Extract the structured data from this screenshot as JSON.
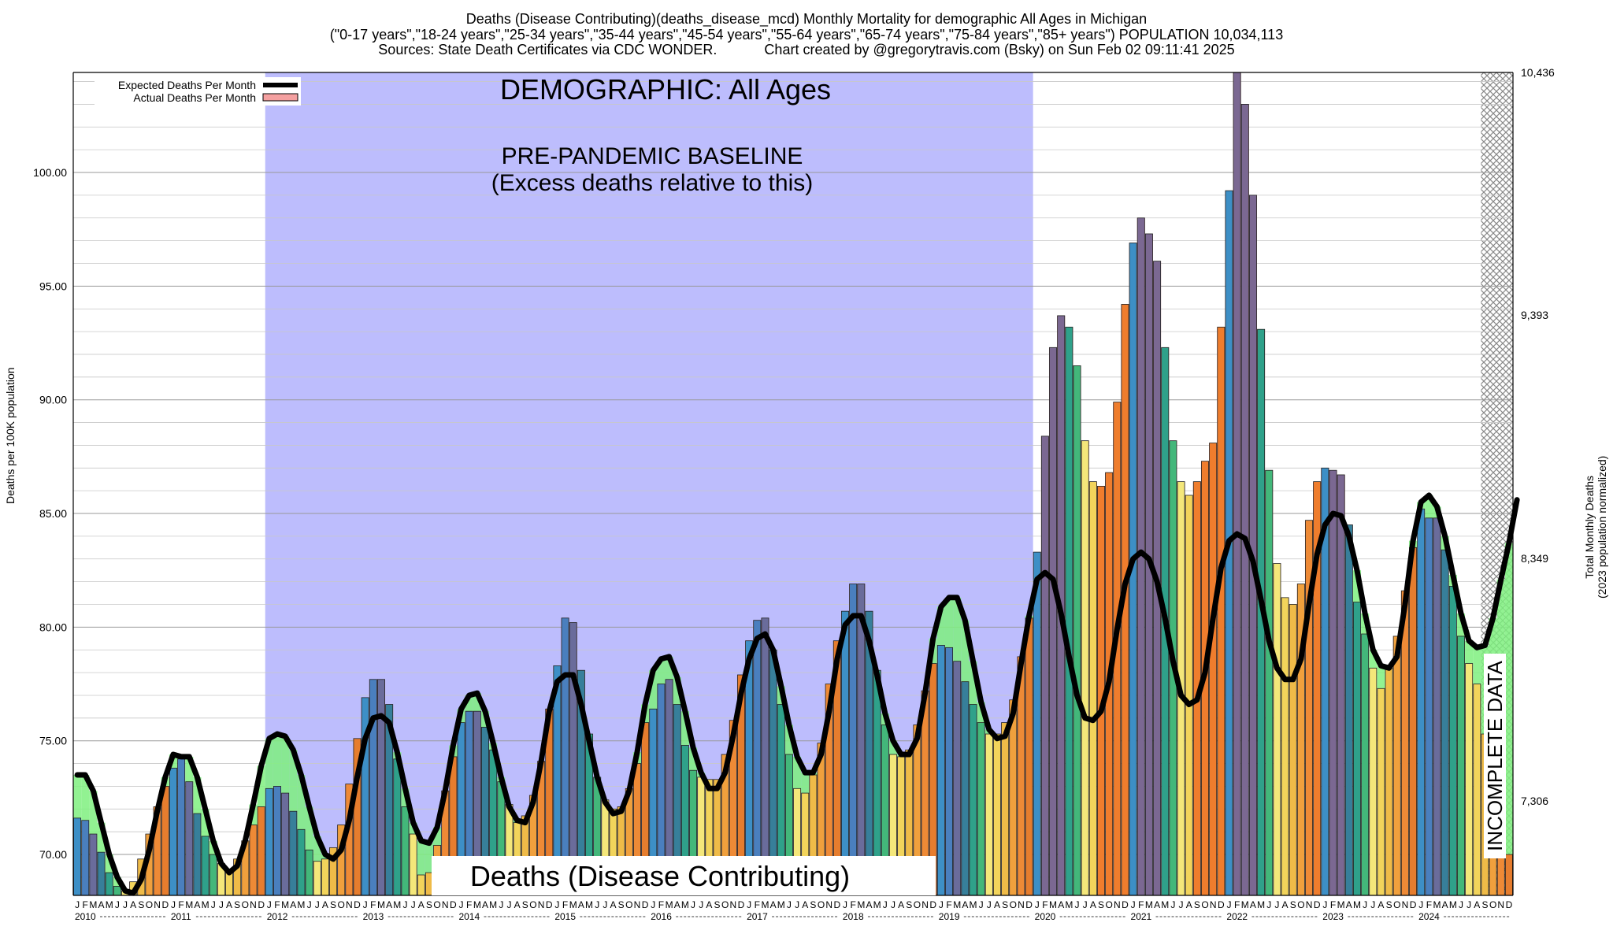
{
  "header": {
    "line1": "Deaths (Disease Contributing)(deaths_disease_mcd) Monthly Mortality for demographic All Ages in Michigan",
    "line2": "(\"0-17 years\",\"18-24 years\",\"25-34 years\",\"35-44 years\",\"45-54 years\",\"55-64 years\",\"65-74 years\",\"75-84 years\",\"85+ years\") POPULATION 10,034,113",
    "line3": "Sources: State Death Certificates via CDC WONDER.            Chart created by @gregorytravis.com (Bsky) on Sun Feb 02 09:11:41 2025"
  },
  "axes": {
    "y_left_label": "Deaths per 100K population",
    "y_right_label_1": "Total Monthly Deaths",
    "y_right_label_2": "(2023 population normalized)",
    "y_left_ticks": [
      "70.00",
      "75.00",
      "80.00",
      "85.00",
      "90.00",
      "95.00",
      "100.00"
    ],
    "y_right_ticks": [
      "7,306",
      "8,349",
      "9,393",
      "10,436"
    ]
  },
  "legend": {
    "expected": "Expected Deaths Per Month",
    "actual": "Actual Deaths Per Month"
  },
  "annotations": {
    "demographic": "DEMOGRAPHIC: All Ages",
    "baseline_1": "PRE-PANDEMIC BASELINE",
    "baseline_2": "(Excess deaths relative to this)",
    "bottom_title": "Deaths (Disease Contributing)",
    "incomplete": "INCOMPLETE DATA"
  },
  "colors": {
    "baseline_band": "#bdbdfd",
    "expected_line": "#000000",
    "actual_fill": "#f4a0a0",
    "excess_fill": "#7ff07f",
    "hatch": "#888888"
  },
  "chart_data": {
    "type": "bar",
    "title": "Deaths (Disease Contributing)(deaths_disease_mcd) Monthly Mortality for demographic All Ages in Michigan",
    "ylabel": "Deaths per 100K population",
    "ylim": [
      68.2,
      104.4
    ],
    "y2lim": [
      6900,
      10436
    ],
    "baseline_years": [
      2012,
      2019
    ],
    "incomplete_from": "2024-09",
    "month_letters": [
      "J",
      "F",
      "M",
      "A",
      "M",
      "J",
      "J",
      "A",
      "S",
      "O",
      "N",
      "D"
    ],
    "years": [
      2010,
      2011,
      2012,
      2013,
      2014,
      2015,
      2016,
      2017,
      2018,
      2019,
      2020,
      2021,
      2022,
      2023,
      2024
    ],
    "actual": [
      71.6,
      71.5,
      70.9,
      70.1,
      69.2,
      68.6,
      68.4,
      68.8,
      69.8,
      70.9,
      72.1,
      73.0,
      73.8,
      74.2,
      73.2,
      71.8,
      70.8,
      70.0,
      69.6,
      69.2,
      69.8,
      70.6,
      71.3,
      72.1,
      72.9,
      73.0,
      72.7,
      71.9,
      71.1,
      70.2,
      69.7,
      69.8,
      70.3,
      71.3,
      73.1,
      75.1,
      76.9,
      77.7,
      77.7,
      76.6,
      74.2,
      72.1,
      70.9,
      69.1,
      69.2,
      70.4,
      72.8,
      74.3,
      75.8,
      76.3,
      76.3,
      75.6,
      74.6,
      73.2,
      72.2,
      71.4,
      71.7,
      72.6,
      74.1,
      76.4,
      78.3,
      80.4,
      80.2,
      78.1,
      75.3,
      73.4,
      72.4,
      72.0,
      72.1,
      72.9,
      74.0,
      75.8,
      76.4,
      77.5,
      77.7,
      76.6,
      74.8,
      73.7,
      73.4,
      73.3,
      73.3,
      74.4,
      75.9,
      77.9,
      79.4,
      80.3,
      80.4,
      79.0,
      76.6,
      74.4,
      72.9,
      72.7,
      73.5,
      74.9,
      77.5,
      79.4,
      80.7,
      81.9,
      81.9,
      80.7,
      78.1,
      75.7,
      74.4,
      74.3,
      74.6,
      75.7,
      77.2,
      78.4,
      79.2,
      79.1,
      78.5,
      77.6,
      76.6,
      75.8,
      75.3,
      75.3,
      75.8,
      76.8,
      78.7,
      80.4,
      83.3,
      88.4,
      92.3,
      93.7,
      93.2,
      91.5,
      88.2,
      86.4,
      86.2,
      86.8,
      89.9,
      94.2,
      96.9,
      98.0,
      97.3,
      96.1,
      92.3,
      88.2,
      86.4,
      85.8,
      86.4,
      87.3,
      88.1,
      93.2,
      99.2,
      104.4,
      103.0,
      99.0,
      93.1,
      86.9,
      82.8,
      81.3,
      81.0,
      81.9,
      84.7,
      86.4,
      87.0,
      86.9,
      86.7,
      84.5,
      81.1,
      79.7,
      78.2,
      77.3,
      78.2,
      79.6,
      81.6,
      83.5,
      85.2,
      84.8,
      84.8,
      83.4,
      81.8,
      79.6,
      78.4,
      77.5,
      75.3,
      72.2,
      70.8,
      70.0
    ],
    "expected": [
      73.5,
      73.5,
      72.8,
      71.4,
      70.0,
      69.0,
      68.4,
      68.3,
      68.9,
      70.2,
      71.9,
      73.4,
      74.4,
      74.3,
      74.3,
      73.4,
      72.0,
      70.6,
      69.6,
      69.2,
      69.5,
      70.6,
      72.2,
      73.9,
      75.1,
      75.3,
      75.2,
      74.6,
      73.5,
      72.1,
      70.8,
      70.0,
      69.8,
      70.2,
      71.5,
      73.4,
      75.1,
      76.0,
      76.1,
      75.8,
      74.5,
      72.9,
      71.4,
      70.6,
      70.5,
      71.2,
      72.8,
      74.8,
      76.4,
      77.0,
      77.1,
      76.3,
      74.9,
      73.4,
      72.1,
      71.5,
      71.4,
      72.3,
      74.1,
      76.3,
      77.6,
      77.9,
      77.9,
      76.6,
      75.0,
      73.4,
      72.3,
      71.8,
      71.9,
      72.8,
      74.5,
      76.6,
      78.1,
      78.6,
      78.7,
      77.8,
      76.3,
      74.7,
      73.6,
      72.9,
      72.9,
      73.6,
      75.2,
      77.1,
      78.6,
      79.5,
      79.7,
      79.0,
      77.4,
      75.7,
      74.3,
      73.6,
      73.6,
      74.4,
      76.3,
      78.6,
      80.1,
      80.5,
      80.5,
      79.4,
      77.9,
      76.2,
      75.0,
      74.4,
      74.4,
      75.1,
      77.1,
      79.5,
      80.9,
      81.3,
      81.3,
      80.3,
      78.5,
      76.7,
      75.5,
      75.1,
      75.2,
      76.2,
      78.4,
      80.5,
      82.1,
      82.4,
      82.1,
      80.6,
      78.7,
      77.0,
      76.0,
      75.9,
      76.3,
      77.6,
      79.9,
      81.9,
      83.0,
      83.3,
      83.0,
      82.0,
      80.4,
      78.5,
      77.0,
      76.6,
      76.8,
      78.0,
      80.4,
      82.6,
      83.8,
      84.1,
      83.9,
      82.9,
      81.2,
      79.4,
      78.2,
      77.7,
      77.7,
      78.6,
      81.0,
      83.2,
      84.5,
      85.0,
      84.9,
      84.0,
      82.5,
      80.6,
      79.0,
      78.3,
      78.2,
      78.7,
      81.0,
      83.8,
      85.5,
      85.8,
      85.3,
      84.0,
      82.3,
      80.6,
      79.4,
      79.1,
      79.2,
      80.4,
      82.1,
      83.7
    ],
    "expected_tail": [
      85.6
    ]
  }
}
